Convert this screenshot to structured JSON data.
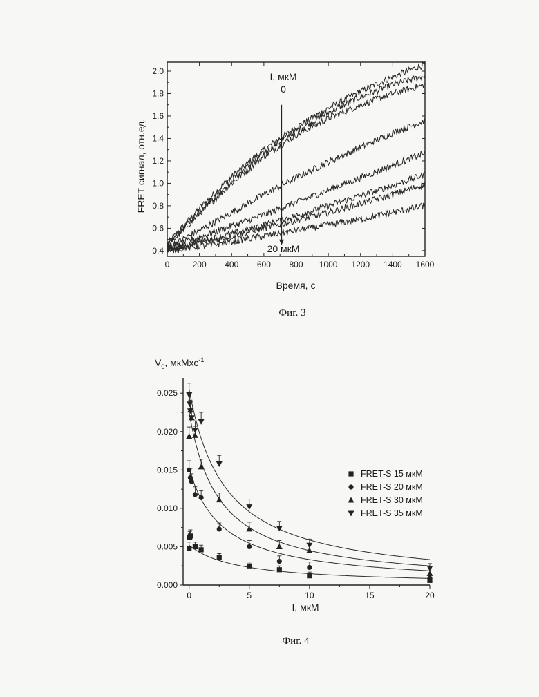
{
  "figures": {
    "fig3_caption": "Фиг. 3",
    "fig4_caption": "Фиг. 4"
  },
  "chart_data": [
    {
      "type": "line",
      "xlabel": "Время, с",
      "ylabel": "FRET сигнал, отн.ед.",
      "xlim": [
        0,
        1600
      ],
      "ylim": [
        0.35,
        2.08
      ],
      "x_ticks": [
        0,
        200,
        400,
        600,
        800,
        1000,
        1200,
        1400,
        1600
      ],
      "y_ticks": [
        0.4,
        0.6,
        0.8,
        1.0,
        1.2,
        1.4,
        1.6,
        1.8,
        2.0
      ],
      "x_tick_labels": [
        "0",
        "200",
        "400",
        "600",
        "800",
        "1000",
        "1200",
        "1400",
        "1600"
      ],
      "y_tick_labels": [
        "0.4",
        "0.6",
        "0.8",
        "1.0",
        "1.2",
        "1.4",
        "1.6",
        "1.8",
        "2.0"
      ],
      "annotations": {
        "arrow_top_label": "I, мкМ",
        "arrow_top_value": "0",
        "arrow_bottom_label": "20 мкМ",
        "arrow_x": 710,
        "arrow_y_from": 1.7,
        "arrow_y_to": 0.45
      },
      "series": [
        {
          "x": [
            0,
            200,
            400,
            600,
            800,
            1000,
            1200,
            1400,
            1600
          ],
          "values": [
            0.46,
            0.78,
            1.06,
            1.3,
            1.5,
            1.67,
            1.82,
            1.95,
            2.06
          ]
        },
        {
          "x": [
            0,
            200,
            400,
            600,
            800,
            1000,
            1200,
            1400,
            1600
          ],
          "values": [
            0.45,
            0.75,
            1.03,
            1.27,
            1.47,
            1.63,
            1.77,
            1.88,
            1.96
          ]
        },
        {
          "x": [
            0,
            200,
            400,
            600,
            800,
            1000,
            1200,
            1400,
            1600
          ],
          "values": [
            0.44,
            0.73,
            1.0,
            1.24,
            1.43,
            1.58,
            1.7,
            1.8,
            1.88
          ]
        },
        {
          "x": [
            0,
            200,
            400,
            600,
            800,
            1000,
            1200,
            1400,
            1600
          ],
          "values": [
            0.43,
            0.58,
            0.74,
            0.9,
            1.05,
            1.19,
            1.32,
            1.45,
            1.56
          ]
        },
        {
          "x": [
            0,
            200,
            400,
            600,
            800,
            1000,
            1200,
            1400,
            1600
          ],
          "values": [
            0.42,
            0.52,
            0.62,
            0.72,
            0.83,
            0.94,
            1.05,
            1.16,
            1.27
          ]
        },
        {
          "x": [
            0,
            200,
            400,
            600,
            800,
            1000,
            1200,
            1400,
            1600
          ],
          "values": [
            0.41,
            0.48,
            0.55,
            0.63,
            0.71,
            0.8,
            0.89,
            0.98,
            1.08
          ]
        },
        {
          "x": [
            0,
            200,
            400,
            600,
            800,
            1000,
            1200,
            1400,
            1600
          ],
          "values": [
            0.41,
            0.47,
            0.53,
            0.6,
            0.67,
            0.74,
            0.82,
            0.9,
            0.99
          ]
        },
        {
          "x": [
            0,
            200,
            400,
            600,
            800,
            1000,
            1200,
            1400,
            1600
          ],
          "values": [
            0.4,
            0.44,
            0.48,
            0.53,
            0.58,
            0.63,
            0.68,
            0.74,
            0.8
          ]
        }
      ]
    },
    {
      "type": "scatter",
      "xlabel": "I, мкМ",
      "ylabel": "V",
      "ylabel_sub": "0",
      "ylabel_rest": ", мкМхс",
      "ylabel_sup": "-1",
      "xlim": [
        -0.5,
        20
      ],
      "ylim": [
        0,
        0.027
      ],
      "x_ticks": [
        0,
        5,
        10,
        15,
        20
      ],
      "y_ticks": [
        0.0,
        0.005,
        0.01,
        0.015,
        0.02,
        0.025
      ],
      "x_tick_labels": [
        "0",
        "5",
        "10",
        "15",
        "20"
      ],
      "y_tick_labels": [
        "0.000",
        "0.005",
        "0.010",
        "0.015",
        "0.020",
        "0.025"
      ],
      "legend_position": "right",
      "series": [
        {
          "name": "FRET-S 15 мкМ",
          "marker": "square",
          "x": [
            0,
            0.05,
            0.1,
            0.5,
            1,
            2.5,
            5,
            7.5,
            10,
            20
          ],
          "values": [
            0.0048,
            0.0062,
            0.0064,
            0.005,
            0.0046,
            0.0036,
            0.0025,
            0.002,
            0.0012,
            0.0006
          ],
          "errors": [
            0.0008,
            0.0008,
            0.0008,
            0.0006,
            0.0006,
            0.0005,
            0.0005,
            0.0005,
            0.0005,
            0.0004
          ],
          "fit": {
            "vmax": 0.0052,
            "k": 4.0
          }
        },
        {
          "name": "FRET-S 20 мкМ",
          "marker": "circle",
          "x": [
            0,
            0.1,
            0.2,
            0.5,
            1,
            2.5,
            5,
            7.5,
            10,
            20
          ],
          "values": [
            0.015,
            0.014,
            0.0135,
            0.0118,
            0.0114,
            0.0073,
            0.005,
            0.0031,
            0.0023,
            0.0009
          ],
          "errors": [
            0.0012,
            0.0012,
            0.001,
            0.001,
            0.0009,
            0.0008,
            0.0008,
            0.0007,
            0.0007,
            0.0005
          ],
          "fit": {
            "vmax": 0.0152,
            "k": 2.8
          }
        },
        {
          "name": "FRET-S 30 мкМ",
          "marker": "triangle-up",
          "x": [
            0,
            0.1,
            0.2,
            0.5,
            1,
            2.5,
            5,
            7.5,
            10,
            20
          ],
          "values": [
            0.0194,
            0.0228,
            0.0218,
            0.0195,
            0.0154,
            0.0111,
            0.0073,
            0.005,
            0.0045,
            0.0015
          ],
          "errors": [
            0.0012,
            0.0012,
            0.0012,
            0.0012,
            0.001,
            0.0009,
            0.0009,
            0.0008,
            0.0008,
            0.0006
          ],
          "fit": {
            "vmax": 0.0225,
            "k": 2.5
          }
        },
        {
          "name": "FRET-S 35 мкМ",
          "marker": "triangle-down",
          "x": [
            0,
            0.05,
            0.1,
            0.2,
            0.5,
            1,
            2.5,
            5,
            7.5,
            10,
            20
          ],
          "values": [
            0.0248,
            0.0236,
            0.0227,
            0.0218,
            0.0202,
            0.0213,
            0.0158,
            0.0102,
            0.0074,
            0.0052,
            0.0022
          ],
          "errors": [
            0.0015,
            0.0014,
            0.0014,
            0.0013,
            0.0012,
            0.0012,
            0.0011,
            0.001,
            0.0009,
            0.0008,
            0.0006
          ],
          "fit": {
            "vmax": 0.0255,
            "k": 3.0
          }
        }
      ]
    }
  ]
}
